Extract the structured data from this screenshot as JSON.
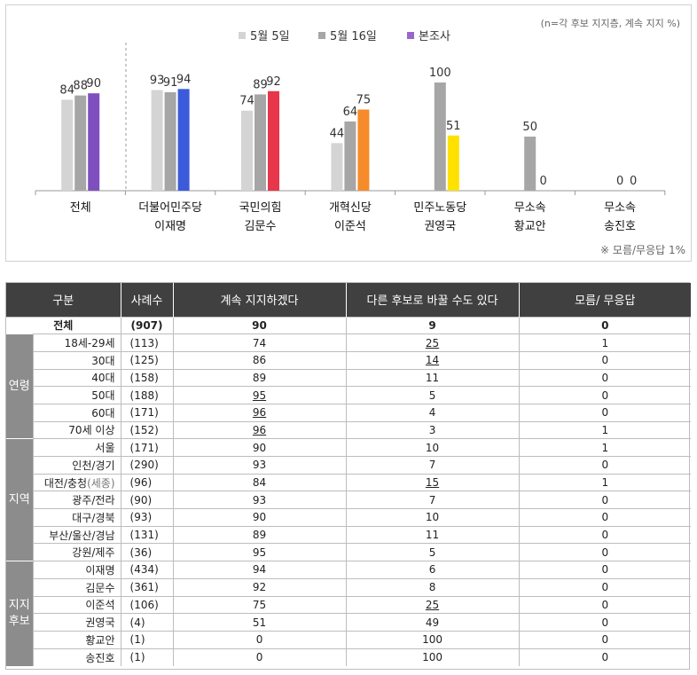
{
  "chart_data": {
    "type": "bar",
    "note": "(n=각 후보 지지층, 계속 지지 %)",
    "footnote": "※ 모름/무응답 1%",
    "series": [
      {
        "name": "5월 5일",
        "color": "#d4d4d4",
        "values": [
          84,
          93,
          74,
          44,
          null,
          null,
          null
        ]
      },
      {
        "name": "5월 16일",
        "color": "#a6a6a6",
        "values": [
          88,
          91,
          89,
          64,
          100,
          50,
          0
        ]
      },
      {
        "name": "본조사",
        "color": "#9966cc",
        "values": [
          90,
          94,
          92,
          75,
          51,
          0,
          0
        ]
      }
    ],
    "categories": [
      {
        "line1": "전체",
        "line2": ""
      },
      {
        "line1": "더불어민주당",
        "line2": "이재명"
      },
      {
        "line1": "국민의힘",
        "line2": "김문수"
      },
      {
        "line1": "개혁신당",
        "line2": "이준석"
      },
      {
        "line1": "민주노동당",
        "line2": "권영국"
      },
      {
        "line1": "무소속",
        "line2": "황교안"
      },
      {
        "line1": "무소속",
        "line2": "송진호"
      }
    ],
    "survey_colors": [
      "#7f4fbf",
      "#3b5bdb",
      "#e8364a",
      "#f68b2c",
      "#ffe100",
      "#a6a6a6",
      "#a6a6a6"
    ],
    "ylim": [
      0,
      100
    ]
  },
  "table": {
    "headers": [
      "구분",
      "사례수",
      "계속 지지하겠다",
      "다른 후보로 바꿀 수도 있다",
      "모름/ 무응답"
    ],
    "total": {
      "label": "전체",
      "count": "(907)",
      "keep": "90",
      "change": "9",
      "dk": "0"
    },
    "groups": [
      {
        "name": "연령",
        "rows": [
          {
            "label": "18세-29세",
            "count": "(113)",
            "keep": "74",
            "change": "25",
            "dk": "1",
            "u": [
              false,
              true
            ]
          },
          {
            "label": "30대",
            "count": "(125)",
            "keep": "86",
            "change": "14",
            "dk": "0",
            "u": [
              false,
              true
            ]
          },
          {
            "label": "40대",
            "count": "(158)",
            "keep": "89",
            "change": "11",
            "dk": "0",
            "u": [
              false,
              false
            ]
          },
          {
            "label": "50대",
            "count": "(188)",
            "keep": "95",
            "change": "5",
            "dk": "0",
            "u": [
              true,
              false
            ]
          },
          {
            "label": "60대",
            "count": "(171)",
            "keep": "96",
            "change": "4",
            "dk": "0",
            "u": [
              true,
              false
            ]
          },
          {
            "label": "70세 이상",
            "count": "(152)",
            "keep": "96",
            "change": "3",
            "dk": "1",
            "u": [
              true,
              false
            ]
          }
        ]
      },
      {
        "name": "지역",
        "rows": [
          {
            "label": "서울",
            "count": "(171)",
            "keep": "90",
            "change": "10",
            "dk": "1",
            "u": [
              false,
              false
            ]
          },
          {
            "label": "인천/경기",
            "count": "(290)",
            "keep": "93",
            "change": "7",
            "dk": "0",
            "u": [
              false,
              false
            ]
          },
          {
            "label": "대전/충청",
            "sub": "(세종)",
            "count": "(96)",
            "keep": "84",
            "change": "15",
            "dk": "1",
            "u": [
              false,
              true
            ]
          },
          {
            "label": "광주/전라",
            "count": "(90)",
            "keep": "93",
            "change": "7",
            "dk": "0",
            "u": [
              false,
              false
            ]
          },
          {
            "label": "대구/경북",
            "count": "(93)",
            "keep": "90",
            "change": "10",
            "dk": "0",
            "u": [
              false,
              false
            ]
          },
          {
            "label": "부산/울산/경남",
            "count": "(131)",
            "keep": "89",
            "change": "11",
            "dk": "0",
            "u": [
              false,
              false
            ]
          },
          {
            "label": "강원/제주",
            "count": "(36)",
            "keep": "95",
            "change": "5",
            "dk": "0",
            "u": [
              false,
              false
            ]
          }
        ]
      },
      {
        "name": "지지\n후보",
        "rows": [
          {
            "label": "이재명",
            "count": "(434)",
            "keep": "94",
            "change": "6",
            "dk": "0",
            "u": [
              false,
              false
            ]
          },
          {
            "label": "김문수",
            "count": "(361)",
            "keep": "92",
            "change": "8",
            "dk": "0",
            "u": [
              false,
              false
            ]
          },
          {
            "label": "이준석",
            "count": "(106)",
            "keep": "75",
            "change": "25",
            "dk": "0",
            "u": [
              false,
              true
            ]
          },
          {
            "label": "권영국",
            "count": "(4)",
            "keep": "51",
            "change": "49",
            "dk": "0",
            "u": [
              false,
              false
            ]
          },
          {
            "label": "황교안",
            "count": "(1)",
            "keep": "0",
            "change": "100",
            "dk": "0",
            "u": [
              false,
              false
            ]
          },
          {
            "label": "송진호",
            "count": "(1)",
            "keep": "0",
            "change": "100",
            "dk": "0",
            "u": [
              false,
              false
            ]
          }
        ]
      }
    ]
  }
}
